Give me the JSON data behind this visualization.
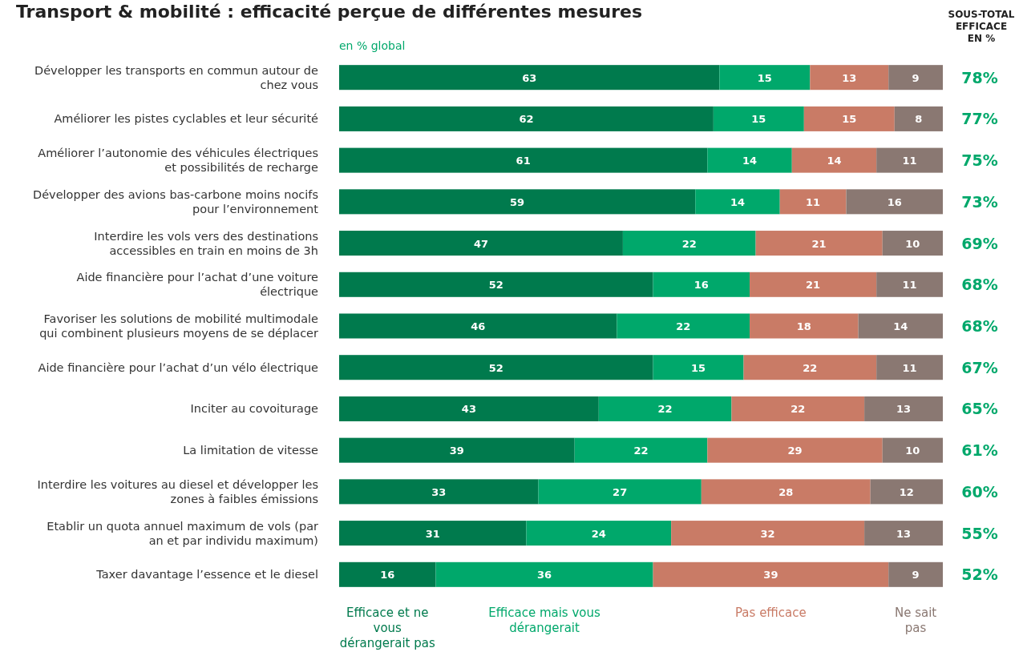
{
  "chart_data": {
    "type": "bar",
    "orientation": "horizontal",
    "stacked": true,
    "title": "Transport & mobilité : efficacité perçue de différentes mesures",
    "subtitle": "en % global",
    "categories": [
      "Développer les transports en commun autour de chez vous",
      "Améliorer les pistes cyclables et leur sécurité",
      "Améliorer l’autonomie des véhicules électriques et possibilités de recharge",
      "Développer des avions bas-carbone moins nocifs pour l’environnement",
      "Interdire les vols vers des destinations accessibles en train en moins de 3h",
      "Aide financière pour l’achat d’une voiture électrique",
      "Favoriser les solutions de mobilité multimodale qui combinent plusieurs moyens de se déplacer",
      "Aide financière pour l’achat d’un vélo électrique",
      "Inciter au covoiturage",
      "La limitation de vitesse",
      "Interdire les voitures au diesel et développer les zones à faibles émissions",
      "Etablir un quota annuel maximum de vols (par an et par individu maximum)",
      "Taxer davantage l’essence et le diesel"
    ],
    "series": [
      {
        "name": "Efficace et ne vous dérangerait pas",
        "color": "#007a4d",
        "values": [
          63,
          62,
          61,
          59,
          47,
          52,
          46,
          52,
          43,
          39,
          33,
          31,
          16
        ]
      },
      {
        "name": "Efficace mais vous dérangerait",
        "color": "#00a86b",
        "values": [
          15,
          15,
          14,
          14,
          22,
          16,
          22,
          15,
          22,
          22,
          27,
          24,
          36
        ]
      },
      {
        "name": "Pas efficace",
        "color": "#c97b66",
        "values": [
          13,
          15,
          14,
          11,
          21,
          21,
          18,
          22,
          22,
          29,
          28,
          32,
          39
        ]
      },
      {
        "name": "Ne sait pas",
        "color": "#8a7872",
        "values": [
          9,
          8,
          11,
          16,
          10,
          11,
          14,
          11,
          13,
          10,
          12,
          13,
          9
        ]
      }
    ],
    "annotations": [
      "SOUS-TOTAL EFFICACE EN %",
      "78%",
      "77%",
      "75%",
      "73%",
      "69%",
      "68%",
      "68%",
      "67%",
      "65%",
      "61%",
      "60%",
      "55%",
      "52%"
    ],
    "xlim": [
      0,
      100
    ],
    "tick_labels": false,
    "data_labels": true,
    "legend": "bottom"
  }
}
